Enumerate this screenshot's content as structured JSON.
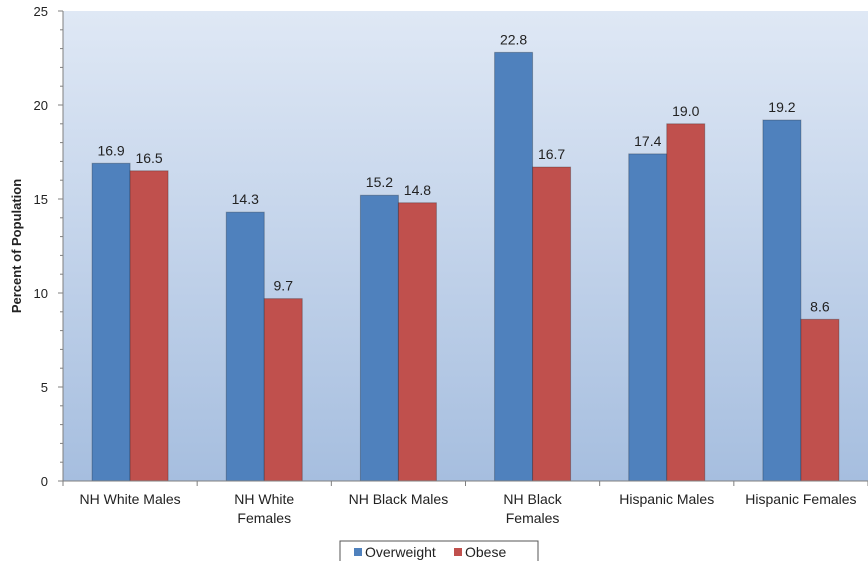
{
  "chart_data": {
    "type": "bar",
    "title": "",
    "xlabel": "",
    "ylabel": "Percent of Population",
    "ylim": [
      0,
      25
    ],
    "yticks": [
      0,
      5,
      10,
      15,
      20,
      25
    ],
    "grid": false,
    "legend": "bottom",
    "categories": [
      [
        "NH White Males"
      ],
      [
        "NH White",
        "Females"
      ],
      [
        "NH Black Males"
      ],
      [
        "NH Black",
        "Females"
      ],
      [
        "Hispanic Males"
      ],
      [
        "Hispanic Females"
      ]
    ],
    "series": [
      {
        "name": "Overweight",
        "color": "#4f81bd",
        "values": [
          16.9,
          14.3,
          15.2,
          22.8,
          17.4,
          19.2
        ],
        "labels": [
          "16.9",
          "14.3",
          "15.2",
          "22.8",
          "17.4",
          "19.2"
        ]
      },
      {
        "name": "Obese",
        "color": "#c0504d",
        "values": [
          16.5,
          9.7,
          14.8,
          16.7,
          19.0,
          8.6
        ],
        "labels": [
          "16.5",
          "9.7",
          "14.8",
          "16.7",
          "19.0",
          "8.6"
        ]
      }
    ]
  }
}
